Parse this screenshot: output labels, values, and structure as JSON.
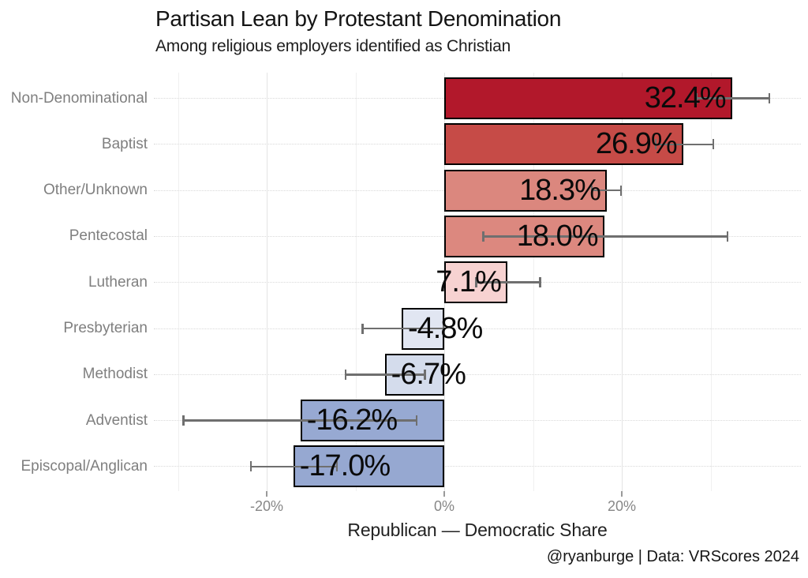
{
  "chart_data": {
    "type": "bar",
    "orientation": "horizontal",
    "title": "Partisan Lean by Protestant Denomination",
    "subtitle": "Among religious employers identified as Christian",
    "xlabel": "Republican — Democratic Share",
    "caption": "@ryanburge | Data: VRScores 2024",
    "xlim": [
      -32.7,
      40.2
    ],
    "x_major_ticks": [
      {
        "value": -20,
        "label": "-20%"
      },
      {
        "value": 0,
        "label": "0%"
      },
      {
        "value": 20,
        "label": "20%"
      }
    ],
    "x_minor_gridlines": [
      -30,
      -10,
      10,
      30
    ],
    "grid": "on",
    "legend": "none",
    "error_bars": true,
    "rows": [
      {
        "category": "Non-Denominational",
        "value": 32.4,
        "label": "32.4%",
        "ci": [
          28.4,
          36.6
        ],
        "color": "#b2182b"
      },
      {
        "category": "Baptist",
        "value": 26.9,
        "label": "26.9%",
        "ci": [
          23.8,
          30.3
        ],
        "color": "#c64b47"
      },
      {
        "category": "Other/Unknown",
        "value": 18.3,
        "label": "18.3%",
        "ci": [
          16.6,
          19.9
        ],
        "color": "#db877e"
      },
      {
        "category": "Pentecostal",
        "value": 18.0,
        "label": "18.0%",
        "ci": [
          4.4,
          31.9
        ],
        "color": "#dc887f"
      },
      {
        "category": "Lutheran",
        "value": 7.1,
        "label": "7.1%",
        "ci": [
          3.6,
          10.8
        ],
        "color": "#f7d2d1"
      },
      {
        "category": "Presbyterian",
        "value": -4.8,
        "label": "-4.8%",
        "ci": [
          -9.2,
          -0.1
        ],
        "color": "#e1e6f2"
      },
      {
        "category": "Methodist",
        "value": -6.7,
        "label": "-6.7%",
        "ci": [
          -11.1,
          -2.2
        ],
        "color": "#d4dcec"
      },
      {
        "category": "Adventist",
        "value": -16.2,
        "label": "-16.2%",
        "ci": [
          -29.4,
          -3.1
        ],
        "color": "#97a9d2"
      },
      {
        "category": "Episcopal/Anglican",
        "value": -17.0,
        "label": "-17.0%",
        "ci": [
          -21.8,
          -12.1
        ],
        "color": "#96a8d1"
      }
    ],
    "style": {
      "bar_outline": "#000000",
      "whisker_color": "#6f6f6f",
      "major_grid_color": "#e4e4e4",
      "minor_grid_color": "#f0f0f0",
      "row_grid_color": "#d9d9d9",
      "category_label_color": "#7f7f7f",
      "tick_label_color": "#878787"
    }
  }
}
